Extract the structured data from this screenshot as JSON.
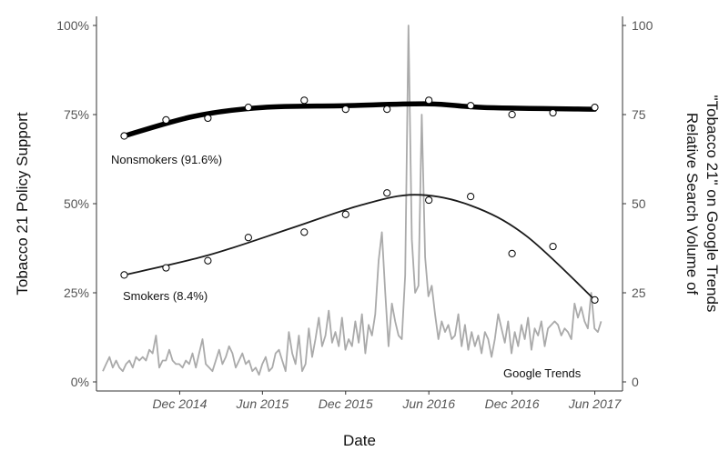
{
  "chart_data": {
    "type": "line",
    "xlabel": "Date",
    "ylabel_left": "Tobacco 21 Policy Support",
    "ylabel_right": "Relative Search Volume of\n\"Tobacco 21\" on Google Trends",
    "x_ticks": [
      "Dec 2014",
      "Jun 2015",
      "Dec 2015",
      "Jun 2016",
      "Dec 2016",
      "Jun 2017"
    ],
    "y_left_ticks": [
      "0%",
      "25%",
      "50%",
      "75%",
      "100%"
    ],
    "y_right_ticks": [
      "0",
      "25",
      "50",
      "75",
      "100"
    ],
    "ylim_left": [
      0,
      100
    ],
    "ylim_right": [
      0,
      100
    ],
    "grid": false,
    "series": [
      {
        "name": "Nonsmokers (91.6%)",
        "axis": "left",
        "style": "thick-trend-with-points",
        "color": "#000000",
        "points": [
          {
            "x": "2014-08-01",
            "y": 69
          },
          {
            "x": "2014-11-01",
            "y": 73.5
          },
          {
            "x": "2015-02-01",
            "y": 74
          },
          {
            "x": "2015-05-01",
            "y": 77
          },
          {
            "x": "2015-09-01",
            "y": 79
          },
          {
            "x": "2015-12-01",
            "y": 76.5
          },
          {
            "x": "2016-03-01",
            "y": 76.5
          },
          {
            "x": "2016-06-01",
            "y": 79
          },
          {
            "x": "2016-09-01",
            "y": 77.5
          },
          {
            "x": "2016-12-01",
            "y": 75
          },
          {
            "x": "2017-03-01",
            "y": 75.5
          },
          {
            "x": "2017-06-01",
            "y": 77
          }
        ],
        "trend": [
          {
            "x": "2014-08-01",
            "y": 69
          },
          {
            "x": "2015-01-01",
            "y": 74.5
          },
          {
            "x": "2015-06-01",
            "y": 77
          },
          {
            "x": "2015-12-01",
            "y": 77.5
          },
          {
            "x": "2016-06-01",
            "y": 78
          },
          {
            "x": "2016-10-01",
            "y": 77
          },
          {
            "x": "2017-06-01",
            "y": 76.5
          }
        ]
      },
      {
        "name": "Smokers (8.4%)",
        "axis": "left",
        "style": "thin-trend-with-points",
        "color": "#1a1a1a",
        "points": [
          {
            "x": "2014-08-01",
            "y": 30
          },
          {
            "x": "2014-11-01",
            "y": 32
          },
          {
            "x": "2015-02-01",
            "y": 34
          },
          {
            "x": "2015-05-01",
            "y": 40.5
          },
          {
            "x": "2015-09-01",
            "y": 42
          },
          {
            "x": "2015-12-01",
            "y": 47
          },
          {
            "x": "2016-03-01",
            "y": 53
          },
          {
            "x": "2016-06-01",
            "y": 51
          },
          {
            "x": "2016-09-01",
            "y": 52
          },
          {
            "x": "2016-12-01",
            "y": 36
          },
          {
            "x": "2017-03-01",
            "y": 38
          },
          {
            "x": "2017-06-01",
            "y": 23
          }
        ],
        "trend": [
          {
            "x": "2014-08-01",
            "y": 30
          },
          {
            "x": "2015-02-01",
            "y": 35.5
          },
          {
            "x": "2015-08-01",
            "y": 43
          },
          {
            "x": "2016-01-01",
            "y": 49.5
          },
          {
            "x": "2016-05-01",
            "y": 52.5
          },
          {
            "x": "2016-09-01",
            "y": 49.5
          },
          {
            "x": "2017-01-01",
            "y": 41
          },
          {
            "x": "2017-06-01",
            "y": 23
          }
        ]
      },
      {
        "name": "Google Trends",
        "axis": "right",
        "style": "line",
        "color": "#aaaaaa",
        "values": [
          3,
          5,
          7,
          4,
          6,
          4,
          3,
          5,
          6,
          4,
          7,
          6,
          7,
          6,
          9,
          8,
          13,
          4,
          6,
          6,
          9,
          6,
          5,
          5,
          4,
          6,
          5,
          8,
          4,
          8,
          12,
          5,
          4,
          3,
          6,
          9,
          5,
          7,
          10,
          8,
          4,
          6,
          8,
          5,
          6,
          3,
          4,
          2,
          5,
          7,
          3,
          4,
          8,
          9,
          6,
          3,
          14,
          8,
          5,
          13,
          3,
          5,
          15,
          7,
          12,
          18,
          10,
          13,
          20,
          11,
          14,
          10,
          18,
          9,
          12,
          10,
          17,
          11,
          19,
          8,
          16,
          13,
          19,
          34,
          42,
          25,
          10,
          22,
          17,
          13,
          12,
          30,
          100,
          40,
          25,
          27,
          75,
          35,
          24,
          27,
          19,
          12,
          17,
          14,
          16,
          12,
          13,
          19,
          10,
          16,
          9,
          14,
          10,
          13,
          8,
          14,
          12,
          7,
          12,
          19,
          15,
          11,
          17,
          8,
          14,
          10,
          16,
          12,
          18,
          9,
          15,
          13,
          17,
          10,
          15,
          16,
          17,
          16,
          13,
          15,
          14,
          12,
          22,
          18,
          21,
          17,
          15,
          25,
          15,
          14,
          17
        ]
      }
    ],
    "x_range": {
      "start": "2014-06-01",
      "end": "2017-08-01"
    }
  }
}
